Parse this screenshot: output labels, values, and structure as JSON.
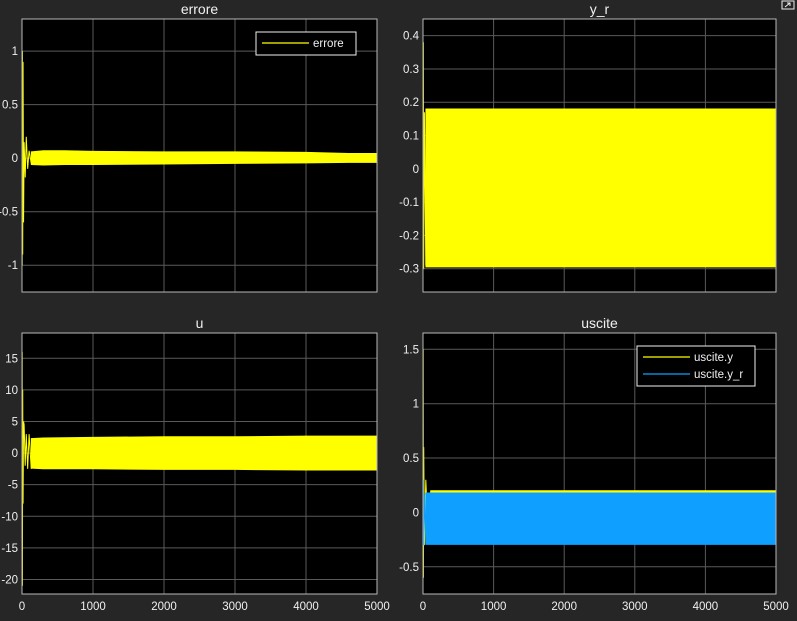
{
  "icons": {
    "corner": "restore-view-icon"
  },
  "chart_data": [
    {
      "type": "line",
      "title": "errore",
      "xlim": [
        0,
        5000
      ],
      "ylim": [
        -1.25,
        1.3
      ],
      "grid": true,
      "x_ticks": [
        0,
        1000,
        2000,
        3000,
        4000,
        5000
      ],
      "x_ticklabels_visible": false,
      "y_ticks": [
        -1,
        -0.5,
        0,
        0.5,
        1
      ],
      "y_ticklabels": [
        "-1",
        "-0.5",
        "0",
        "0.5",
        "1"
      ],
      "legend": {
        "position": "top-right",
        "entries": [
          "errore"
        ]
      },
      "series": [
        {
          "name": "errore",
          "color": "#ffff00",
          "transient": {
            "x": [
              0,
              3,
              6,
              10,
              15,
              22,
              30,
              45,
              60,
              80,
              100,
              130
            ],
            "y": [
              0.55,
              -1.0,
              1.0,
              -0.9,
              0.9,
              -0.6,
              0.15,
              -0.18,
              0.2,
              -0.1,
              0.07,
              -0.05
            ]
          },
          "band": {
            "x": [
              130,
              300,
              600,
              1000,
              2000,
              3000,
              4000,
              4600,
              5000
            ],
            "upper": [
              0.06,
              0.07,
              0.07,
              0.065,
              0.06,
              0.06,
              0.055,
              0.045,
              0.045
            ],
            "lower": [
              -0.06,
              -0.065,
              -0.06,
              -0.06,
              -0.055,
              -0.05,
              -0.045,
              -0.04,
              -0.04
            ]
          }
        }
      ]
    },
    {
      "type": "line",
      "title": "y_r",
      "xlim": [
        0,
        5000
      ],
      "ylim": [
        -0.37,
        0.45
      ],
      "grid": true,
      "x_ticks": [
        0,
        1000,
        2000,
        3000,
        4000,
        5000
      ],
      "x_ticklabels_visible": false,
      "y_ticks": [
        -0.3,
        -0.2,
        -0.1,
        0,
        0.1,
        0.2,
        0.3,
        0.4
      ],
      "y_ticklabels": [
        "-0.3",
        "-0.2",
        "-0.1",
        "0",
        "0.1",
        "0.2",
        "0.3",
        "0.4"
      ],
      "series": [
        {
          "name": "",
          "color": "#ffff00",
          "transient": {
            "x": [
              0,
              5,
              10,
              20,
              40
            ],
            "y": [
              0.0,
              0.38,
              -0.3,
              0.17,
              -0.29
            ]
          },
          "band": {
            "x": [
              40,
              5000
            ],
            "upper": [
              0.18,
              0.18
            ],
            "lower": [
              -0.295,
              -0.295
            ]
          }
        }
      ]
    },
    {
      "type": "line",
      "title": "u",
      "xlim": [
        0,
        5000
      ],
      "ylim": [
        -22.3,
        19
      ],
      "grid": true,
      "x_ticks": [
        0,
        1000,
        2000,
        3000,
        4000,
        5000
      ],
      "x_ticklabels": [
        "0",
        "1000",
        "2000",
        "3000",
        "4000",
        "5000"
      ],
      "y_ticks": [
        -20,
        -15,
        -10,
        -5,
        0,
        5,
        10,
        15
      ],
      "y_ticklabels": [
        "-20",
        "-15",
        "-10",
        "-5",
        "0",
        "5",
        "10",
        "15"
      ],
      "series": [
        {
          "name": "",
          "color": "#ffff00",
          "transient": {
            "x": [
              0,
              3,
              6,
              10,
              15,
              22,
              30,
              45,
              60,
              80,
              100,
              130
            ],
            "y": [
              0,
              16,
              -21,
              10,
              -8,
              5,
              4.5,
              -2,
              3,
              -2.5,
              3,
              -2.5
            ]
          },
          "band": {
            "x": [
              130,
              300,
              1000,
              2000,
              3000,
              4000,
              5000
            ],
            "upper": [
              2.3,
              2.4,
              2.5,
              2.6,
              2.6,
              2.7,
              2.7
            ],
            "lower": [
              -2.4,
              -2.5,
              -2.5,
              -2.6,
              -2.6,
              -2.7,
              -2.7
            ]
          }
        }
      ]
    },
    {
      "type": "line",
      "title": "uscite",
      "xlim": [
        0,
        5000
      ],
      "ylim": [
        -0.75,
        1.65
      ],
      "grid": true,
      "x_ticks": [
        0,
        1000,
        2000,
        3000,
        4000,
        5000
      ],
      "x_ticklabels": [
        "0",
        "1000",
        "2000",
        "3000",
        "4000",
        "5000"
      ],
      "y_ticks": [
        -0.5,
        0,
        0.5,
        1,
        1.5
      ],
      "y_ticklabels": [
        "-0.5",
        "0",
        "0.5",
        "1",
        "1.5"
      ],
      "legend": {
        "position": "top-right",
        "entries": [
          "uscite.y",
          "uscite.y_r"
        ]
      },
      "series": [
        {
          "name": "uscite.y",
          "color": "#ffff00",
          "transient": {
            "x": [
              0,
              3,
              6,
              10,
              20,
              40,
              70,
              110
            ],
            "y": [
              0,
              1.5,
              -0.6,
              0.6,
              -0.3,
              0.3,
              -0.2,
              0.2
            ]
          },
          "band": {
            "x": [
              110,
              5000
            ],
            "upper": [
              0.2,
              0.2
            ],
            "lower": [
              -0.28,
              -0.28
            ]
          }
        },
        {
          "name": "uscite.y_r",
          "color": "#0fa0ff",
          "transient": {
            "x": [
              0,
              5,
              10,
              20,
              40
            ],
            "y": [
              0.0,
              0.3,
              -0.3,
              0.17,
              -0.29
            ]
          },
          "band": {
            "x": [
              40,
              5000
            ],
            "upper": [
              0.18,
              0.18
            ],
            "lower": [
              -0.295,
              -0.295
            ]
          }
        }
      ]
    }
  ]
}
